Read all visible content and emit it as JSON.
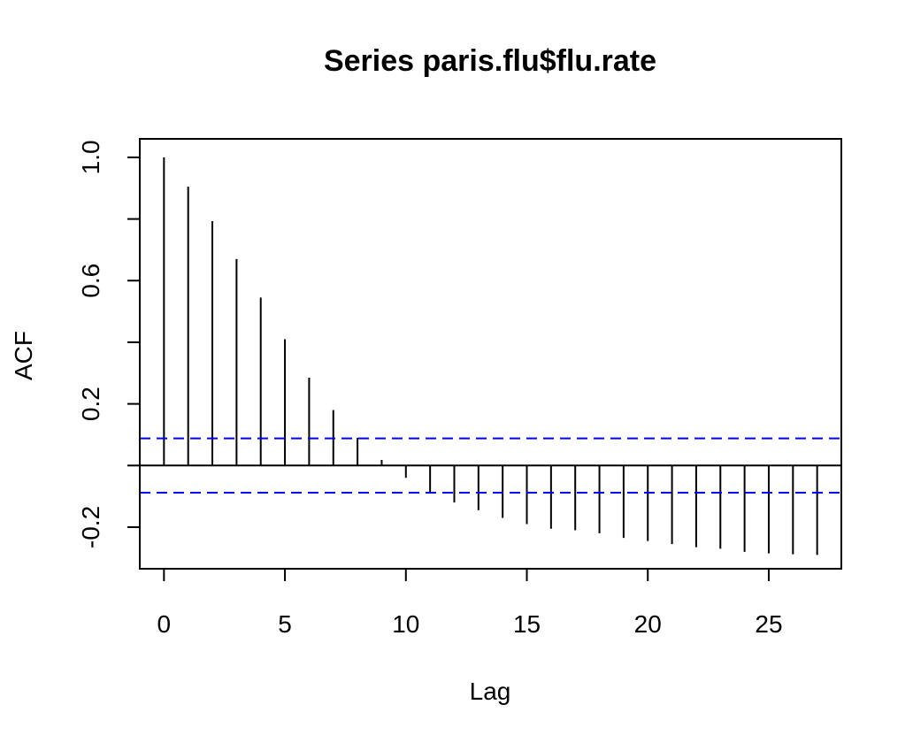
{
  "chart_data": {
    "type": "bar",
    "title": "Series  paris.flu$flu.rate",
    "xlabel": "Lag",
    "ylabel": "ACF",
    "xlim": [
      -1,
      28
    ],
    "ylim": [
      -0.335,
      1.06
    ],
    "x_ticks": [
      0,
      5,
      10,
      15,
      20,
      25
    ],
    "y_ticks": [
      -0.2,
      0.2,
      0.6,
      1.0
    ],
    "x_tick_labels": [
      "0",
      "5",
      "10",
      "15",
      "20",
      "25"
    ],
    "y_tick_labels": [
      "-0.2",
      "0.2",
      "0.6",
      "1.0"
    ],
    "lags": [
      0,
      1,
      2,
      3,
      4,
      5,
      6,
      7,
      8,
      9,
      10,
      11,
      12,
      13,
      14,
      15,
      16,
      17,
      18,
      19,
      20,
      21,
      22,
      23,
      24,
      25,
      26,
      27
    ],
    "acf": [
      1.0,
      0.905,
      0.793,
      0.67,
      0.545,
      0.41,
      0.285,
      0.18,
      0.09,
      0.018,
      -0.04,
      -0.09,
      -0.12,
      -0.145,
      -0.17,
      -0.19,
      -0.205,
      -0.21,
      -0.22,
      -0.235,
      -0.245,
      -0.255,
      -0.265,
      -0.27,
      -0.28,
      -0.285,
      -0.288,
      -0.29
    ],
    "confidence_bound": 0.088,
    "colors": {
      "bars": "#000000",
      "confidence": "#0000ff",
      "zero_line": "#000000"
    },
    "grid": false
  }
}
